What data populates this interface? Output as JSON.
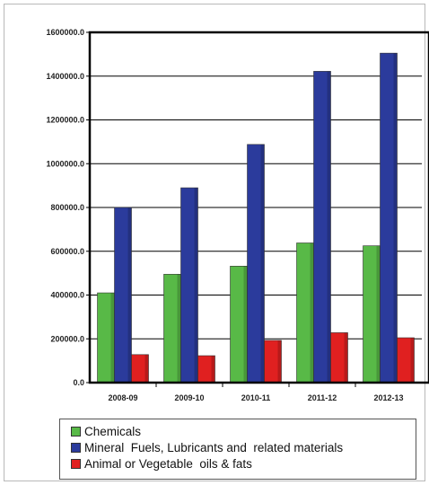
{
  "chart_data": {
    "type": "bar",
    "categories": [
      "2008-09",
      "2009-10",
      "2010-11",
      "2011-12",
      "2012-13"
    ],
    "series": [
      {
        "name": "Chemicals",
        "color": "#58b947",
        "values": [
          410000,
          495000,
          532000,
          638000,
          625000
        ]
      },
      {
        "name": "Mineral  Fuels, Lubricants and  related materials",
        "color": "#2b3b9c",
        "values": [
          800000,
          890000,
          1088000,
          1422000,
          1505000
        ]
      },
      {
        "name": "Animal or Vegetable  oils & fats",
        "color": "#e02020",
        "values": [
          128000,
          123000,
          193000,
          228000,
          205000
        ]
      }
    ],
    "yticks": [
      "0.0",
      "200000.0",
      "400000.0",
      "600000.0",
      "800000.0",
      "1000000.0",
      "1200000.0",
      "1400000.0",
      "1600000.0"
    ],
    "ylim": [
      0,
      1600000
    ],
    "grid": true,
    "legend_position": "bottom"
  }
}
